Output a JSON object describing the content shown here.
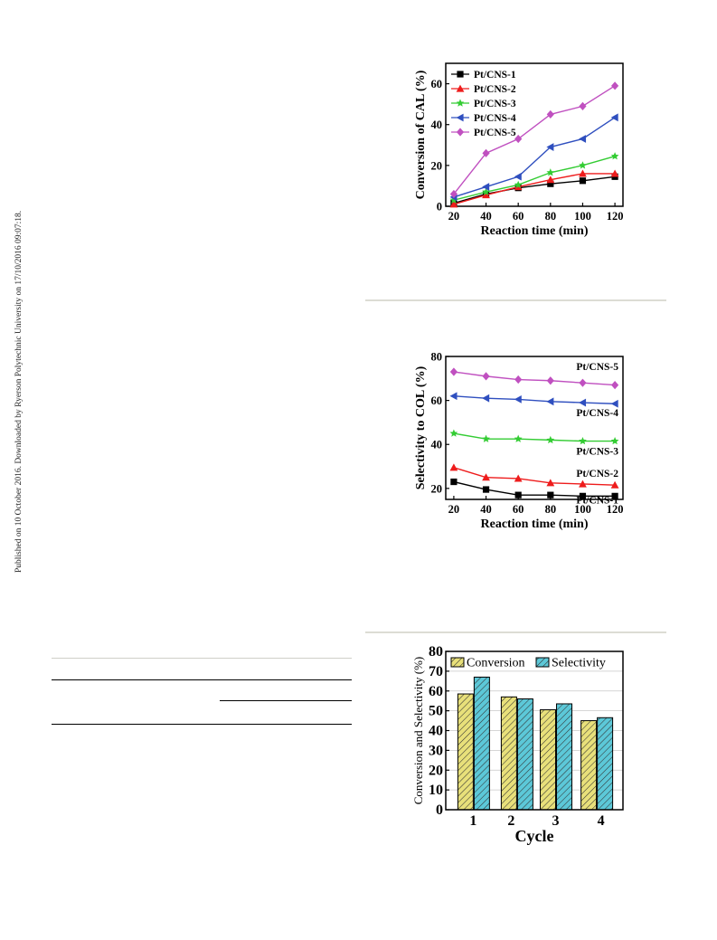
{
  "sidebar": {
    "published_note": "Published on 10 October 2016. Downloaded by Ryerson Polytechnic University on 17/10/2016 09:07:18."
  },
  "chart_data": [
    {
      "type": "line",
      "xlabel": "Reaction time (min)",
      "ylabel": "Conversion of CAL (%)",
      "x": [
        20,
        40,
        60,
        80,
        100,
        120
      ],
      "xlim": [
        15,
        125
      ],
      "ylim": [
        0,
        70
      ],
      "xticks": [
        20,
        40,
        60,
        80,
        100,
        120
      ],
      "yticks": [
        0,
        20,
        40,
        60
      ],
      "legend_position": "top-left",
      "series": [
        {
          "name": "Pt/CNS-1",
          "marker": "square",
          "color": "#000000",
          "values": [
            1.5,
            6,
            9,
            11,
            12.5,
            14.5
          ]
        },
        {
          "name": "Pt/CNS-2",
          "marker": "triangle-up",
          "color": "#ee1c1c",
          "values": [
            1,
            5.5,
            9.5,
            13,
            16,
            16
          ]
        },
        {
          "name": "Pt/CNS-3",
          "marker": "star",
          "color": "#33cc33",
          "values": [
            3,
            7,
            10.5,
            16.5,
            20,
            24.5
          ]
        },
        {
          "name": "Pt/CNS-4",
          "marker": "triangle-left",
          "color": "#2f4fbf",
          "values": [
            4.5,
            9.5,
            14.5,
            29,
            33,
            43.5
          ]
        },
        {
          "name": "Pt/CNS-5",
          "marker": "diamond",
          "color": "#c050c0",
          "values": [
            6,
            26,
            33,
            45,
            49,
            59
          ]
        }
      ]
    },
    {
      "type": "line",
      "xlabel": "Reaction time (min)",
      "ylabel": "Selectivity to COL (%)",
      "x": [
        20,
        40,
        60,
        80,
        100,
        120
      ],
      "xlim": [
        15,
        125
      ],
      "ylim": [
        15,
        80
      ],
      "xticks": [
        20,
        40,
        60,
        80,
        100,
        120
      ],
      "yticks": [
        20,
        40,
        60,
        80
      ],
      "series": [
        {
          "name": "Pt/CNS-1",
          "marker": "square",
          "color": "#000000",
          "values": [
            23,
            19.5,
            17,
            17,
            16.5,
            16.5
          ]
        },
        {
          "name": "Pt/CNS-2",
          "marker": "triangle-up",
          "color": "#ee1c1c",
          "values": [
            29.5,
            25,
            24.5,
            22.5,
            22,
            21.5
          ]
        },
        {
          "name": "Pt/CNS-3",
          "marker": "star",
          "color": "#33cc33",
          "values": [
            45,
            42.5,
            42.5,
            42,
            41.5,
            41.5
          ]
        },
        {
          "name": "Pt/CNS-4",
          "marker": "triangle-left",
          "color": "#2f4fbf",
          "values": [
            62,
            61,
            60.5,
            59.5,
            59,
            58.5
          ]
        },
        {
          "name": "Pt/CNS-5",
          "marker": "diamond",
          "color": "#c050c0",
          "values": [
            73,
            71,
            69.5,
            69,
            68,
            67
          ]
        }
      ]
    },
    {
      "type": "bar",
      "xlabel": "Cycle",
      "ylabel": "Conversion and Selectivity (%)",
      "categories": [
        "1",
        "2",
        "3",
        "4"
      ],
      "ylim": [
        0,
        80
      ],
      "yticks": [
        0,
        10,
        20,
        30,
        40,
        50,
        60,
        70,
        80
      ],
      "grid": true,
      "legend_position": "top",
      "series": [
        {
          "name": "Conversion",
          "color": "#e8e07a",
          "hatch": "diagonal",
          "values": [
            58.5,
            57,
            50.5,
            45
          ]
        },
        {
          "name": "Selectivity",
          "color": "#5cc8d8",
          "hatch": "diagonal",
          "values": [
            67,
            56,
            53.5,
            46.5
          ]
        }
      ]
    }
  ]
}
